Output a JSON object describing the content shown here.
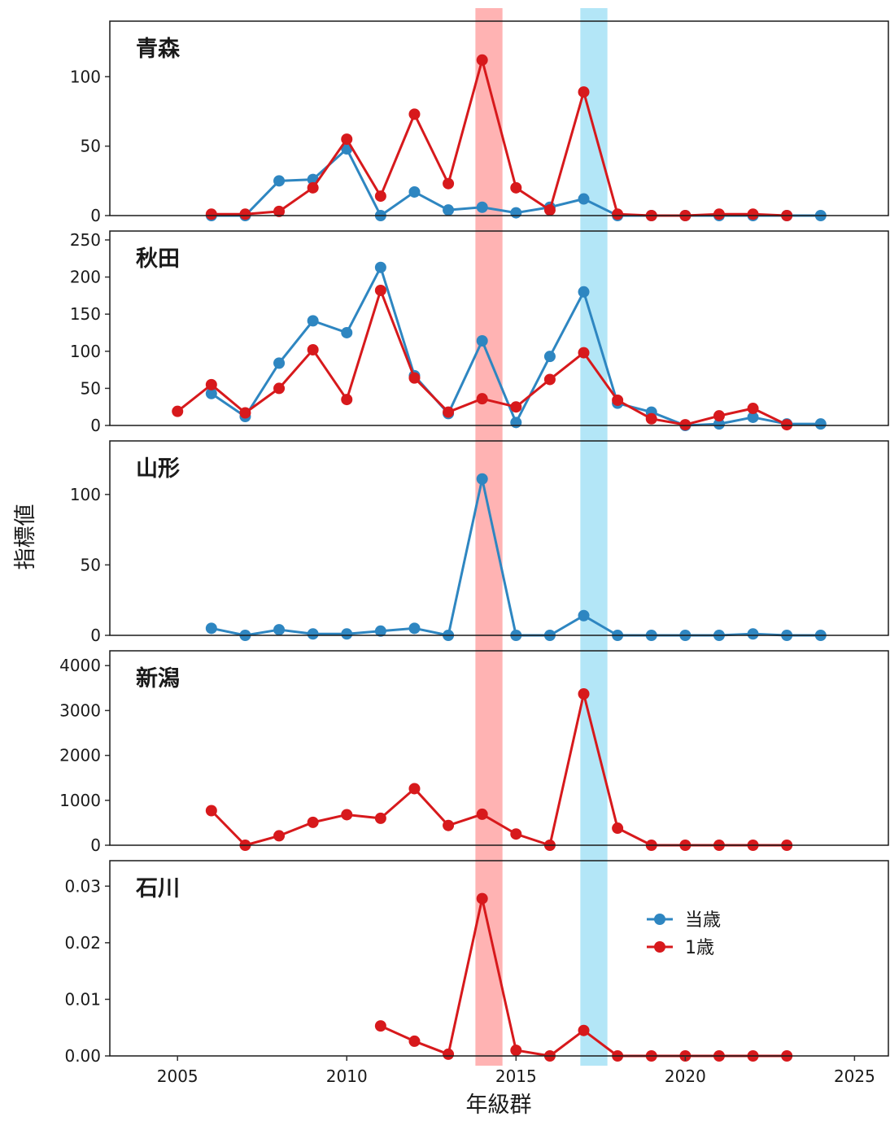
{
  "chart_data": {
    "type": "line",
    "xlabel": "年級群",
    "ylabel": "指標値",
    "xlim": [
      2003,
      2026
    ],
    "x_ticks": [
      2005,
      2010,
      2015,
      2020,
      2025
    ],
    "highlight_bands": [
      {
        "from": 2013.8,
        "to": 2014.6,
        "color": "#ffb3b3"
      },
      {
        "from": 2016.9,
        "to": 2017.7,
        "color": "#b3e6f7"
      }
    ],
    "legend": {
      "position": "in-bottom-panel-right",
      "entries": [
        {
          "label": "当歳",
          "color": "#2e86c1"
        },
        {
          "label": "1歳",
          "color": "#d7191c"
        }
      ]
    },
    "panels": [
      {
        "title": "青森",
        "ylim": [
          0,
          140
        ],
        "y_ticks": [
          0,
          50,
          100
        ],
        "y_tick_labels": [
          "0",
          "50",
          "100"
        ],
        "series": [
          {
            "name": "当歳",
            "color": "#2e86c1",
            "x": [
              2006,
              2007,
              2008,
              2009,
              2010,
              2011,
              2012,
              2013,
              2014,
              2015,
              2016,
              2017,
              2018,
              2019,
              2020,
              2021,
              2022,
              2023,
              2024
            ],
            "values": [
              0,
              0,
              25,
              26,
              48,
              0,
              17,
              4,
              6,
              2,
              6,
              12,
              0,
              0,
              0,
              0,
              0,
              0,
              0
            ]
          },
          {
            "name": "1歳",
            "color": "#d7191c",
            "x": [
              2006,
              2007,
              2008,
              2009,
              2010,
              2011,
              2012,
              2013,
              2014,
              2015,
              2016,
              2017,
              2018,
              2019,
              2020,
              2021,
              2022,
              2023
            ],
            "values": [
              1,
              1,
              3,
              20,
              55,
              14,
              73,
              23,
              112,
              20,
              4,
              89,
              1,
              0,
              0,
              1,
              1,
              0
            ]
          }
        ]
      },
      {
        "title": "秋田",
        "ylim": [
          0,
          262
        ],
        "y_ticks": [
          0,
          50,
          100,
          150,
          200,
          250
        ],
        "y_tick_labels": [
          "0",
          "50",
          "100",
          "150",
          "200",
          "250"
        ],
        "series": [
          {
            "name": "当歳",
            "color": "#2e86c1",
            "x": [
              2006,
              2007,
              2008,
              2009,
              2010,
              2011,
              2012,
              2013,
              2014,
              2015,
              2016,
              2017,
              2018,
              2019,
              2020,
              2021,
              2022,
              2023,
              2024
            ],
            "values": [
              43,
              12,
              84,
              141,
              125,
              213,
              67,
              16,
              114,
              4,
              93,
              180,
              30,
              18,
              0,
              2,
              11,
              2,
              2
            ]
          },
          {
            "name": "1歳",
            "color": "#d7191c",
            "x": [
              2005,
              2006,
              2007,
              2008,
              2009,
              2010,
              2011,
              2012,
              2013,
              2014,
              2015,
              2016,
              2017,
              2018,
              2019,
              2020,
              2021,
              2022,
              2023
            ],
            "values": [
              19,
              55,
              17,
              50,
              102,
              35,
              182,
              64,
              18,
              36,
              25,
              62,
              98,
              34,
              9,
              1,
              13,
              23,
              1
            ]
          }
        ]
      },
      {
        "title": "山形",
        "ylim": [
          0,
          138
        ],
        "y_ticks": [
          0,
          50,
          100
        ],
        "y_tick_labels": [
          "0",
          "50",
          "100"
        ],
        "series": [
          {
            "name": "当歳",
            "color": "#2e86c1",
            "x": [
              2006,
              2007,
              2008,
              2009,
              2010,
              2011,
              2012,
              2013,
              2014,
              2015,
              2016,
              2017,
              2018,
              2019,
              2020,
              2021,
              2022,
              2023,
              2024
            ],
            "values": [
              5,
              0,
              4,
              1,
              1,
              3,
              5,
              0,
              111,
              0,
              0,
              14,
              0,
              0,
              0,
              0,
              1,
              0,
              0
            ]
          }
        ]
      },
      {
        "title": "新潟",
        "ylim": [
          0,
          4330
        ],
        "y_ticks": [
          0,
          1000,
          2000,
          3000,
          4000
        ],
        "y_tick_labels": [
          "0",
          "1000",
          "2000",
          "3000",
          "4000"
        ],
        "series": [
          {
            "name": "1歳",
            "color": "#d7191c",
            "x": [
              2006,
              2007,
              2008,
              2009,
              2010,
              2011,
              2012,
              2013,
              2014,
              2015,
              2016,
              2017,
              2018,
              2019,
              2020,
              2021,
              2022,
              2023
            ],
            "values": [
              770,
              0,
              210,
              510,
              680,
              600,
              1260,
              440,
              690,
              250,
              0,
              3370,
              380,
              0,
              0,
              0,
              0,
              0
            ]
          }
        ]
      },
      {
        "title": "石川",
        "ylim": [
          0,
          0.0345
        ],
        "y_ticks": [
          0,
          0.01,
          0.02,
          0.03
        ],
        "y_tick_labels": [
          "0.00",
          "0.01",
          "0.02",
          "0.03"
        ],
        "series": [
          {
            "name": "1歳",
            "color": "#d7191c",
            "x": [
              2011,
              2012,
              2013,
              2014,
              2015,
              2016,
              2017,
              2018,
              2019,
              2020,
              2021,
              2022,
              2023
            ],
            "values": [
              0.0053,
              0.0026,
              0.0003,
              0.0278,
              0.001,
              0,
              0.0045,
              0,
              0,
              0,
              0,
              0,
              0
            ]
          }
        ]
      }
    ]
  }
}
